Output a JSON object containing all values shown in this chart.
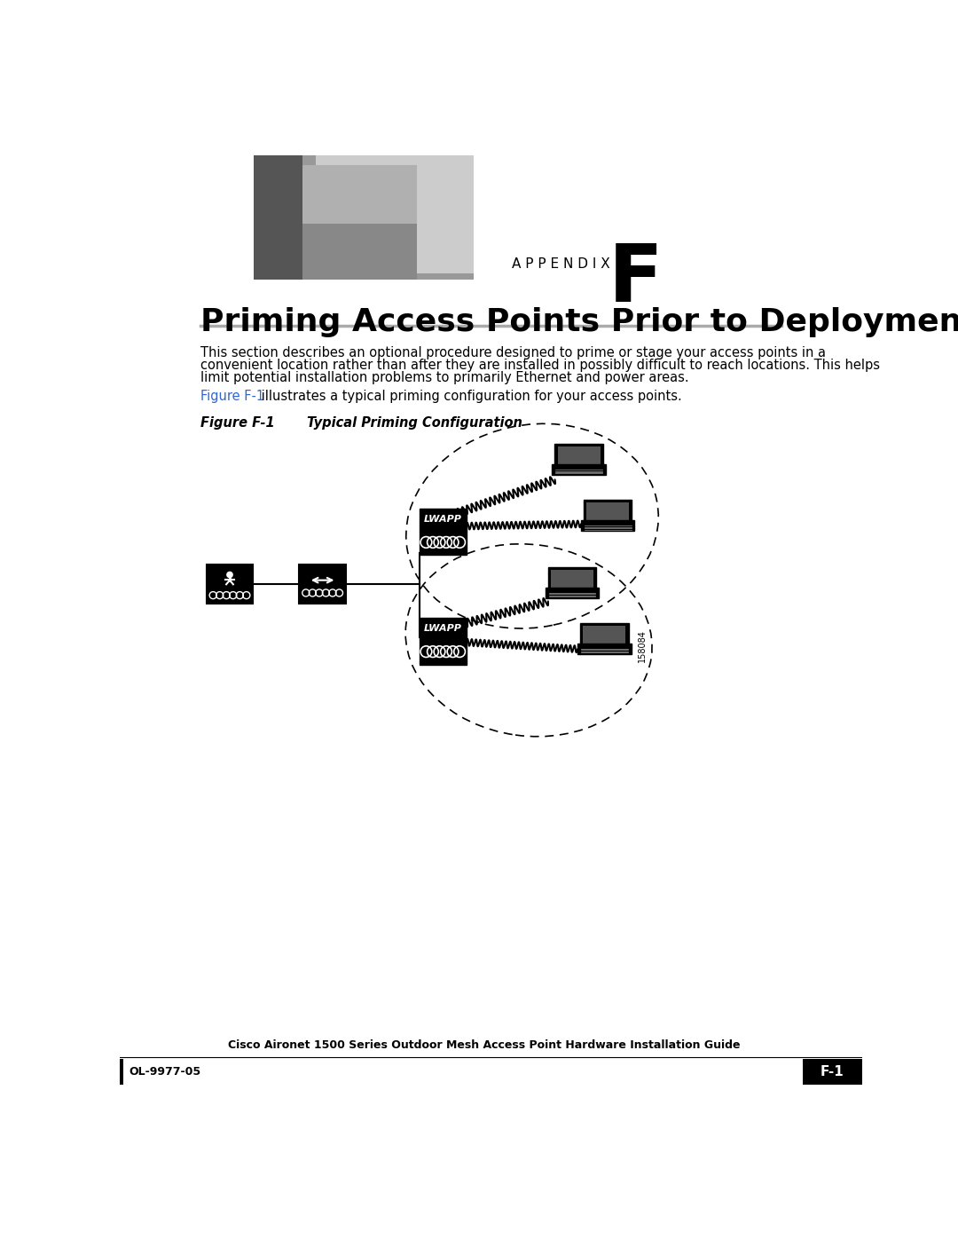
{
  "page_bg": "#ffffff",
  "title": "Priming Access Points Prior to Deployment",
  "appendix_label": "A P P E N D I X",
  "appendix_letter": "F",
  "body_text_1_line1": "This section describes an optional procedure designed to prime or stage your access points in a",
  "body_text_1_line2": "convenient location rather than after they are installed in possibly difficult to reach locations. This helps",
  "body_text_1_line3": "limit potential installation problems to primarily Ethernet and power areas.",
  "body_text_2_blue": "Figure F-1",
  "body_text_2_rest": " illustrates a typical priming configuration for your access points.",
  "figure_label": "Figure F-1",
  "figure_title": "Typical Priming Configuration",
  "figure_id": "158084",
  "footer_center": "Cisco Aironet 1500 Series Outdoor Mesh Access Point Hardware Installation Guide",
  "footer_left": "OL-9977-05",
  "footer_right": "F-1",
  "blue_color": "#3366CC",
  "black": "#000000",
  "gray_line": "#aaaaaa"
}
